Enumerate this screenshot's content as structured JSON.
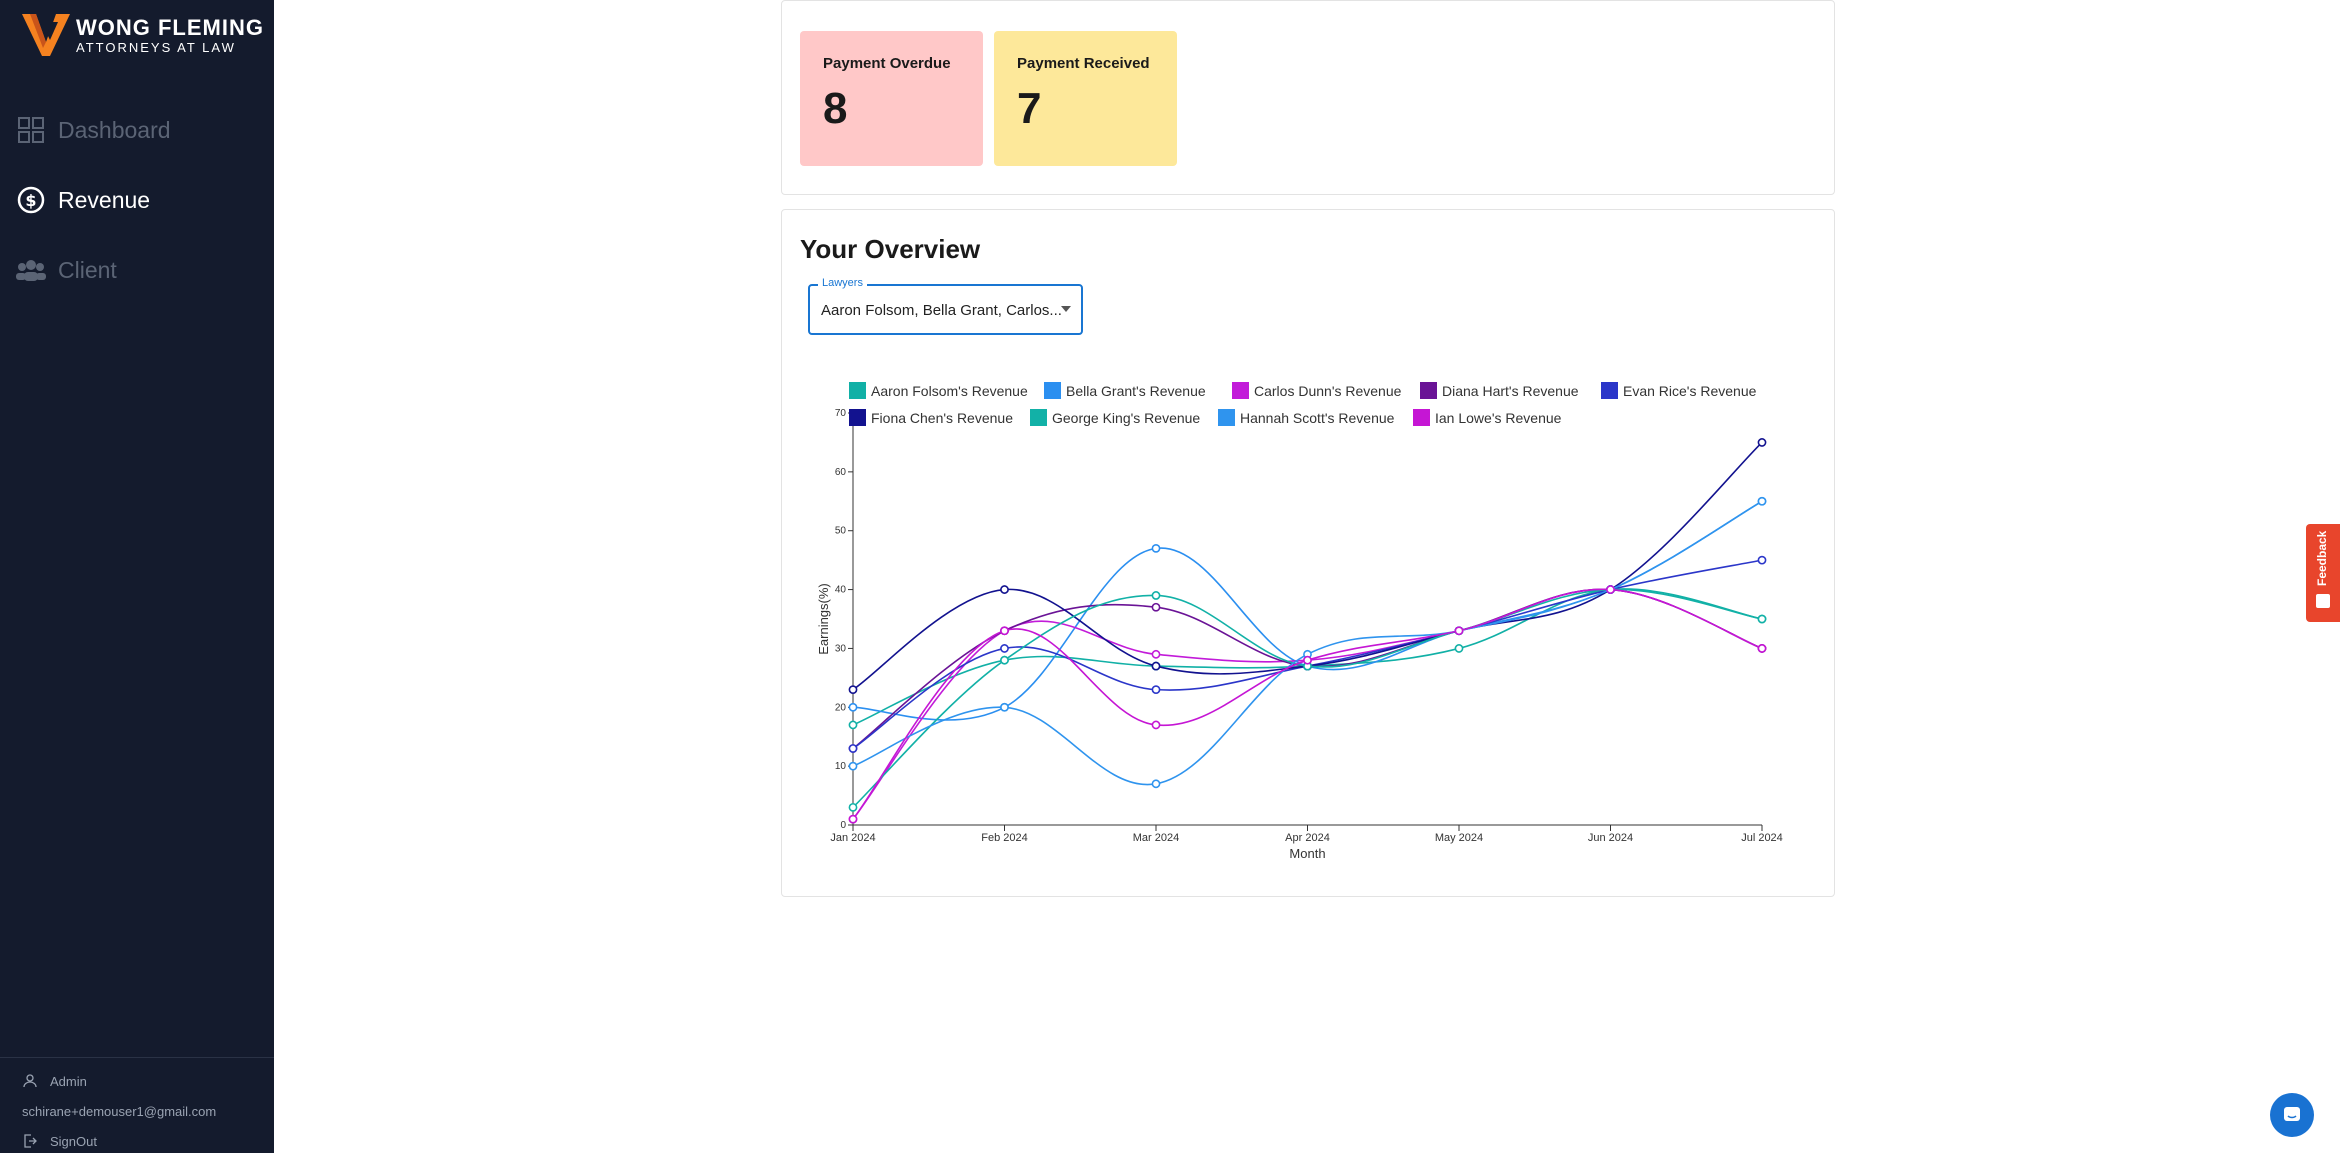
{
  "brand": {
    "name": "WONG FLEMING",
    "tagline": "ATTORNEYS AT LAW",
    "colors": {
      "sidebar": "#141b2d",
      "accent": "#f58220"
    }
  },
  "nav": {
    "items": [
      {
        "label": "Dashboard",
        "icon": "grid-icon",
        "active": false
      },
      {
        "label": "Revenue",
        "icon": "revenue-icon",
        "active": true
      },
      {
        "label": "Client",
        "icon": "users-icon",
        "active": false
      }
    ]
  },
  "user": {
    "role": "Admin",
    "email": "schirane+demouser1@gmail.com",
    "signout": "SignOut"
  },
  "stats": {
    "overdue": {
      "title": "Payment Overdue",
      "value": "8"
    },
    "received": {
      "title": "Payment Received",
      "value": "7"
    }
  },
  "overview": {
    "title": "Your Overview",
    "select_label": "Lawyers",
    "select_value": "Aaron Folsom, Bella Grant, Carlos..."
  },
  "feedback": {
    "label": "Feedback"
  },
  "chart_data": {
    "type": "line",
    "xlabel": "Month",
    "ylabel": "Earnings(%)",
    "ylim": [
      0,
      70
    ],
    "yticks": [
      0,
      10,
      20,
      30,
      40,
      50,
      60,
      70
    ],
    "categories": [
      "Jan 2024",
      "Feb 2024",
      "Mar 2024",
      "Apr 2024",
      "May 2024",
      "Jun 2024",
      "Jul 2024"
    ],
    "legend_position": "top",
    "series": [
      {
        "name": "Aaron Folsom's Revenue",
        "color": "#11b0a6",
        "values": [
          17,
          28,
          27,
          27,
          30,
          40,
          35
        ]
      },
      {
        "name": "Bella Grant's Revenue",
        "color": "#2b8ff0",
        "values": [
          20,
          20,
          47,
          27,
          33,
          40,
          55
        ]
      },
      {
        "name": "Carlos Dunn's Revenue",
        "color": "#c21bd9",
        "values": [
          1,
          33,
          29,
          28,
          33,
          40,
          30
        ]
      },
      {
        "name": "Diana Hart's Revenue",
        "color": "#6a1396",
        "values": [
          13,
          33,
          37,
          27,
          33,
          40,
          30
        ]
      },
      {
        "name": "Evan Rice's Revenue",
        "color": "#2b36c9",
        "values": [
          13,
          30,
          23,
          27,
          33,
          40,
          45
        ]
      },
      {
        "name": "Fiona Chen's Revenue",
        "color": "#12128f",
        "values": [
          23,
          40,
          27,
          27,
          33,
          40,
          65
        ]
      },
      {
        "name": "George King's Revenue",
        "color": "#12b1a7",
        "values": [
          3,
          28,
          39,
          27,
          33,
          40,
          35
        ]
      },
      {
        "name": "Hannah Scott's Revenue",
        "color": "#2f94ee",
        "values": [
          10,
          20,
          7,
          29,
          33,
          40,
          55
        ]
      },
      {
        "name": "Ian Lowe's Revenue",
        "color": "#c516d4",
        "values": [
          1,
          33,
          17,
          28,
          33,
          40,
          30
        ]
      }
    ]
  }
}
